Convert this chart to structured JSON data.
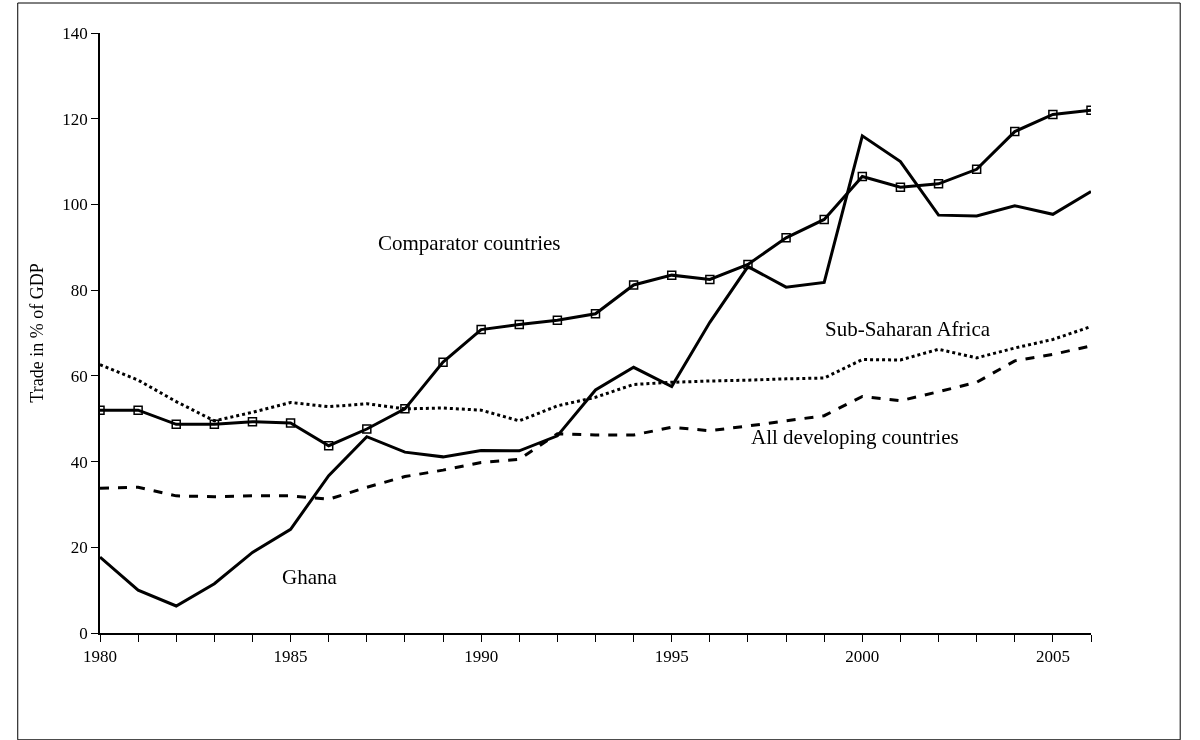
{
  "chart_data": {
    "type": "line",
    "ylabel": "Trade in % of GDP",
    "x": [
      1980,
      1981,
      1982,
      1983,
      1984,
      1985,
      1986,
      1987,
      1988,
      1989,
      1990,
      1991,
      1992,
      1993,
      1994,
      1995,
      1996,
      1997,
      1998,
      1999,
      2000,
      2001,
      2002,
      2003,
      2004,
      2005,
      2006
    ],
    "series": [
      {
        "name": "Comparator countries",
        "color": "#000000",
        "marker": "square",
        "line_style": "solid",
        "values": [
          52,
          52,
          48.7,
          48.7,
          49.3,
          49,
          43.7,
          47.6,
          52.3,
          63.2,
          70.8,
          72,
          73,
          74.5,
          81.2,
          83.5,
          82.5,
          86,
          92.2,
          96.5,
          106.5,
          104,
          104.8,
          108.2,
          117,
          121,
          122
        ]
      },
      {
        "name": "Ghana",
        "color": "#000000",
        "marker": "none",
        "line_style": "solid",
        "values": [
          17.7,
          10,
          6.3,
          11.5,
          18.8,
          24.2,
          36.7,
          45.8,
          42.2,
          41.1,
          42.6,
          42.5,
          46,
          56.7,
          62,
          57.5,
          72.5,
          85.5,
          80.7,
          81.8,
          116,
          110,
          97.5,
          97.3,
          99.7,
          97.7,
          103
        ]
      },
      {
        "name": "Sub-Saharan Africa",
        "color": "#000000",
        "marker": "none",
        "line_style": "dotted",
        "values": [
          62.6,
          59,
          54,
          49.5,
          51.5,
          53.8,
          52.8,
          53.5,
          52.3,
          52.5,
          52,
          49.5,
          53,
          55,
          58,
          58.5,
          58.8,
          59,
          59.3,
          59.5,
          63.8,
          63.7,
          66.2,
          64.2,
          66.5,
          68.5,
          71.5
        ]
      },
      {
        "name": "All developing countries",
        "color": "#000000",
        "marker": "none",
        "line_style": "dashed",
        "values": [
          33.8,
          34,
          32,
          31.8,
          32,
          32,
          31.2,
          34,
          36.5,
          38,
          39.8,
          40.5,
          46.5,
          46.2,
          46.2,
          48,
          47.2,
          48.3,
          49.5,
          50.7,
          55.2,
          54.2,
          56.3,
          58.5,
          63.5,
          65,
          67
        ]
      }
    ],
    "xlim": [
      1980,
      2006
    ],
    "xticks": [
      1980,
      {
        "value": 1981,
        "label": null
      },
      {
        "value": 1982,
        "label": null
      },
      {
        "value": 1983,
        "label": null
      },
      {
        "value": 1984,
        "label": null
      },
      1985,
      {
        "value": 1986,
        "label": null
      },
      {
        "value": 1987,
        "label": null
      },
      {
        "value": 1988,
        "label": null
      },
      {
        "value": 1989,
        "label": null
      },
      1990,
      {
        "value": 1991,
        "label": null
      },
      {
        "value": 1992,
        "label": null
      },
      {
        "value": 1993,
        "label": null
      },
      {
        "value": 1994,
        "label": null
      },
      1995,
      {
        "value": 1996,
        "label": null
      },
      {
        "value": 1997,
        "label": null
      },
      {
        "value": 1998,
        "label": null
      },
      {
        "value": 1999,
        "label": null
      },
      2000,
      {
        "value": 2001,
        "label": null
      },
      {
        "value": 2002,
        "label": null
      },
      {
        "value": 2003,
        "label": null
      },
      {
        "value": 2004,
        "label": null
      },
      2005,
      {
        "value": 2006,
        "label": null
      }
    ],
    "ylim": [
      0,
      140
    ],
    "yticks": [
      0,
      20,
      40,
      60,
      80,
      100,
      120,
      140
    ],
    "legend": false
  }
}
